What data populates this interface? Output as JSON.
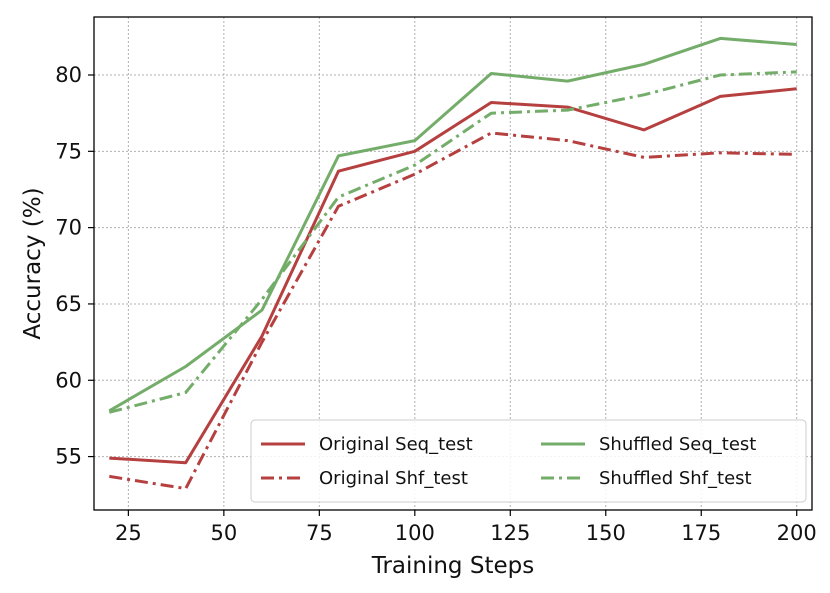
{
  "chart_data": {
    "type": "line",
    "title": "",
    "xlabel": "Training Steps",
    "ylabel": "Accuracy (%)",
    "xlim": [
      16,
      204
    ],
    "ylim": [
      51.5,
      83.8
    ],
    "xticks": [
      25,
      50,
      75,
      100,
      125,
      150,
      175,
      200
    ],
    "yticks": [
      55,
      60,
      65,
      70,
      75,
      80
    ],
    "grid": true,
    "legend_position": "lower right",
    "x": [
      20,
      40,
      60,
      80,
      100,
      120,
      140,
      160,
      180,
      200
    ],
    "series": [
      {
        "name": "Original Seq_test",
        "color": "#b5403f",
        "style": "solid",
        "values": [
          54.9,
          54.6,
          62.9,
          73.7,
          75.0,
          78.2,
          77.9,
          76.4,
          78.6,
          79.1
        ]
      },
      {
        "name": "Original Shf_test",
        "color": "#b5403f",
        "style": "dashdot",
        "values": [
          53.7,
          52.9,
          62.5,
          71.4,
          73.5,
          76.2,
          75.7,
          74.6,
          74.9,
          74.8
        ]
      },
      {
        "name": "Shuffled Seq_test",
        "color": "#74ad6a",
        "style": "solid",
        "values": [
          58.0,
          60.9,
          64.6,
          74.7,
          75.7,
          80.1,
          79.6,
          80.7,
          82.4,
          82.0
        ]
      },
      {
        "name": "Shuffled Shf_test",
        "color": "#74ad6a",
        "style": "dashdot",
        "values": [
          57.9,
          59.2,
          65.3,
          72.0,
          74.1,
          77.5,
          77.7,
          78.7,
          80.0,
          80.2
        ]
      }
    ]
  }
}
